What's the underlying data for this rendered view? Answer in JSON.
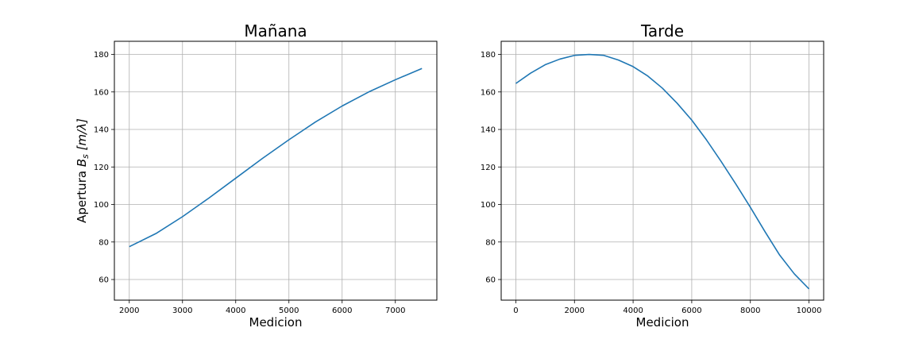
{
  "chart_data": [
    {
      "type": "line",
      "title": "Mañana",
      "xlabel": "Medicion",
      "ylabel_text": "Apertura ",
      "ylabel_symbol": "B",
      "ylabel_subscript": "s",
      "ylabel_units": " [m/λ]",
      "xlim": [
        1720,
        7780
      ],
      "ylim": [
        49,
        187
      ],
      "xticks": [
        2000,
        3000,
        4000,
        5000,
        6000,
        7000
      ],
      "yticks": [
        60,
        80,
        100,
        120,
        140,
        160,
        180
      ],
      "grid": true,
      "series": [
        {
          "color": "#1f77b4",
          "x": [
            2000,
            2500,
            3000,
            3500,
            4000,
            4500,
            5000,
            5500,
            6000,
            6500,
            7000,
            7500
          ],
          "y": [
            77.5,
            84.5,
            93.5,
            103.5,
            114,
            124.5,
            134.5,
            144,
            152.5,
            160,
            166.5,
            172.5
          ]
        }
      ]
    },
    {
      "type": "line",
      "title": "Tarde",
      "xlabel": "Medicion",
      "xlim": [
        -500,
        10500
      ],
      "ylim": [
        49,
        187
      ],
      "xticks": [
        0,
        2000,
        4000,
        6000,
        8000,
        10000
      ],
      "yticks": [
        60,
        80,
        100,
        120,
        140,
        160,
        180
      ],
      "grid": true,
      "series": [
        {
          "color": "#1f77b4",
          "x": [
            0,
            500,
            1000,
            1500,
            2000,
            2500,
            3000,
            3500,
            4000,
            4500,
            5000,
            5500,
            6000,
            6500,
            7000,
            7500,
            8000,
            8500,
            9000,
            9500,
            10000
          ],
          "y": [
            164.5,
            170,
            174.5,
            177.5,
            179.5,
            180,
            179.5,
            177,
            173.5,
            168.5,
            162,
            154,
            145,
            134.5,
            123,
            111,
            98.5,
            85.5,
            73,
            63,
            55
          ]
        }
      ]
    }
  ]
}
